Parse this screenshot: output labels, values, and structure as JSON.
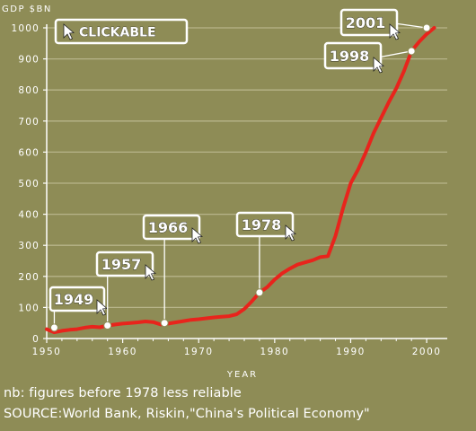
{
  "chart_data": {
    "type": "line",
    "ylabel": "GDP $BN",
    "xlabel": "YEAR",
    "xlim": [
      1950,
      2002
    ],
    "ylim": [
      0,
      1000
    ],
    "x_ticks": [
      1950,
      1960,
      1970,
      1980,
      1990,
      2000
    ],
    "y_ticks": [
      0,
      100,
      200,
      300,
      400,
      500,
      600,
      700,
      800,
      900,
      1000
    ],
    "grid": true,
    "line_color": "#e8241c",
    "points": [
      [
        1950,
        30
      ],
      [
        1951,
        20
      ],
      [
        1952,
        25
      ],
      [
        1953,
        28
      ],
      [
        1954,
        30
      ],
      [
        1955,
        35
      ],
      [
        1956,
        38
      ],
      [
        1957,
        36
      ],
      [
        1958,
        42
      ],
      [
        1959,
        45
      ],
      [
        1960,
        48
      ],
      [
        1961,
        50
      ],
      [
        1962,
        52
      ],
      [
        1963,
        55
      ],
      [
        1964,
        53
      ],
      [
        1965,
        45
      ],
      [
        1966,
        48
      ],
      [
        1967,
        52
      ],
      [
        1968,
        56
      ],
      [
        1969,
        60
      ],
      [
        1970,
        62
      ],
      [
        1971,
        65
      ],
      [
        1972,
        68
      ],
      [
        1973,
        70
      ],
      [
        1974,
        72
      ],
      [
        1975,
        78
      ],
      [
        1976,
        95
      ],
      [
        1977,
        120
      ],
      [
        1978,
        148
      ],
      [
        1979,
        165
      ],
      [
        1980,
        190
      ],
      [
        1981,
        210
      ],
      [
        1982,
        225
      ],
      [
        1983,
        238
      ],
      [
        1984,
        245
      ],
      [
        1985,
        252
      ],
      [
        1986,
        262
      ],
      [
        1987,
        265
      ],
      [
        1988,
        330
      ],
      [
        1989,
        420
      ],
      [
        1990,
        500
      ],
      [
        1991,
        545
      ],
      [
        1992,
        600
      ],
      [
        1993,
        660
      ],
      [
        1994,
        710
      ],
      [
        1995,
        760
      ],
      [
        1996,
        805
      ],
      [
        1997,
        860
      ],
      [
        1998,
        925
      ],
      [
        1999,
        955
      ],
      [
        2000,
        980
      ],
      [
        2001,
        1000
      ]
    ],
    "markers": [
      {
        "year": 1951,
        "value": 35,
        "label": "1949"
      },
      {
        "year": 1958,
        "value": 42,
        "label": "1957"
      },
      {
        "year": 1965.5,
        "value": 50,
        "label": "1966"
      },
      {
        "year": 1978,
        "value": 148,
        "label": "1978"
      },
      {
        "year": 1998,
        "value": 925,
        "label": "1998"
      },
      {
        "year": 2000,
        "value": 1000,
        "label": "2001"
      }
    ],
    "clickable_label": "CLICKABLE"
  },
  "notes": {
    "reliability": "nb: figures before 1978 less reliable",
    "source": "SOURCE:World Bank, Riskin,\"China's Political Economy\""
  },
  "colors": {
    "background": "#8e8c56",
    "grid": "#b7b48a",
    "line": "#e8241c",
    "box_fill": "#8e8c56",
    "box_border": "#ffffff",
    "text": "#ffffff"
  }
}
